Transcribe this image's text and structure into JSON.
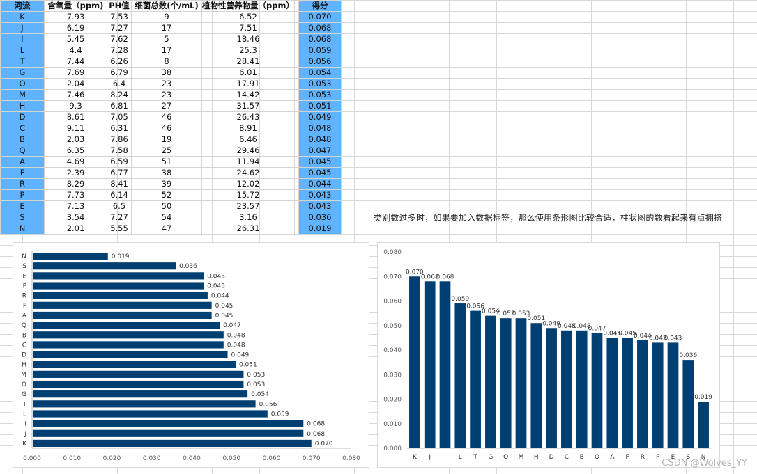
{
  "table": {
    "headers": {
      "river": "河流",
      "oxygen": "含氧量（ppm)",
      "ph": "PH值",
      "bacteria": "细菌总数(个/mL)",
      "nutrient": "植物性营养物量（ppm）",
      "score": "得分"
    },
    "rows": [
      {
        "river": "K",
        "oxygen": "7.93",
        "ph": "7.53",
        "bacteria": "9",
        "nutrient": "6.52",
        "score": "0.070"
      },
      {
        "river": "J",
        "oxygen": "6.19",
        "ph": "7.27",
        "bacteria": "17",
        "nutrient": "7.51",
        "score": "0.068"
      },
      {
        "river": "I",
        "oxygen": "5.45",
        "ph": "7.62",
        "bacteria": "5",
        "nutrient": "18.46",
        "score": "0.068"
      },
      {
        "river": "L",
        "oxygen": "4.4",
        "ph": "7.28",
        "bacteria": "17",
        "nutrient": "25.3",
        "score": "0.059"
      },
      {
        "river": "T",
        "oxygen": "7.44",
        "ph": "6.26",
        "bacteria": "8",
        "nutrient": "28.41",
        "score": "0.056"
      },
      {
        "river": "G",
        "oxygen": "7.69",
        "ph": "6.79",
        "bacteria": "38",
        "nutrient": "6.01",
        "score": "0.054"
      },
      {
        "river": "O",
        "oxygen": "2.04",
        "ph": "6.4",
        "bacteria": "23",
        "nutrient": "17.91",
        "score": "0.053"
      },
      {
        "river": "M",
        "oxygen": "7.46",
        "ph": "8.24",
        "bacteria": "23",
        "nutrient": "14.42",
        "score": "0.053"
      },
      {
        "river": "H",
        "oxygen": "9.3",
        "ph": "6.81",
        "bacteria": "27",
        "nutrient": "31.57",
        "score": "0.051"
      },
      {
        "river": "D",
        "oxygen": "8.61",
        "ph": "7.05",
        "bacteria": "46",
        "nutrient": "26.43",
        "score": "0.049"
      },
      {
        "river": "C",
        "oxygen": "9.11",
        "ph": "6.31",
        "bacteria": "46",
        "nutrient": "8.91",
        "score": "0.048"
      },
      {
        "river": "B",
        "oxygen": "2.03",
        "ph": "7.86",
        "bacteria": "19",
        "nutrient": "6.46",
        "score": "0.048"
      },
      {
        "river": "Q",
        "oxygen": "6.35",
        "ph": "7.58",
        "bacteria": "25",
        "nutrient": "29.46",
        "score": "0.047"
      },
      {
        "river": "A",
        "oxygen": "4.69",
        "ph": "6.59",
        "bacteria": "51",
        "nutrient": "11.94",
        "score": "0.045"
      },
      {
        "river": "F",
        "oxygen": "2.39",
        "ph": "6.77",
        "bacteria": "38",
        "nutrient": "24.62",
        "score": "0.045"
      },
      {
        "river": "R",
        "oxygen": "8.29",
        "ph": "8.41",
        "bacteria": "39",
        "nutrient": "12.02",
        "score": "0.044"
      },
      {
        "river": "P",
        "oxygen": "7.73",
        "ph": "6.14",
        "bacteria": "52",
        "nutrient": "15.72",
        "score": "0.043"
      },
      {
        "river": "E",
        "oxygen": "7.13",
        "ph": "6.5",
        "bacteria": "50",
        "nutrient": "23.57",
        "score": "0.043"
      },
      {
        "river": "S",
        "oxygen": "3.54",
        "ph": "7.27",
        "bacteria": "54",
        "nutrient": "3.16",
        "score": "0.036"
      },
      {
        "river": "N",
        "oxygen": "2.01",
        "ph": "5.55",
        "bacteria": "47",
        "nutrient": "26.31",
        "score": "0.019"
      }
    ]
  },
  "note": "类别数过多时，如果要加入数据标签，那么使用条形图比较合适，柱状图的数看起来有点拥挤",
  "watermark": "CSDN @Wolves_YY",
  "colors": {
    "bar": "#003f72",
    "header_highlight": "#5fb3ff"
  },
  "chart_data": [
    {
      "type": "bar",
      "orientation": "horizontal",
      "categories": [
        "K",
        "J",
        "I",
        "L",
        "T",
        "G",
        "O",
        "M",
        "H",
        "D",
        "C",
        "B",
        "Q",
        "A",
        "F",
        "R",
        "P",
        "E",
        "S",
        "N"
      ],
      "values": [
        0.07,
        0.068,
        0.068,
        0.059,
        0.056,
        0.054,
        0.053,
        0.053,
        0.051,
        0.049,
        0.048,
        0.048,
        0.047,
        0.045,
        0.045,
        0.044,
        0.043,
        0.043,
        0.036,
        0.019
      ],
      "value_labels": [
        "0.070",
        "0.068",
        "0.068",
        "0.059",
        "0.056",
        "0.054",
        "0.053",
        "0.053",
        "0.051",
        "0.049",
        "0.048",
        "0.048",
        "0.047",
        "0.045",
        "0.045",
        "0.044",
        "0.043",
        "0.043",
        "0.036",
        "0.019"
      ],
      "axis_ticks": [
        "0.000",
        "0.010",
        "0.020",
        "0.030",
        "0.040",
        "0.050",
        "0.060",
        "0.070",
        "0.080"
      ],
      "xlim": [
        0,
        0.08
      ],
      "category_order": "bottom-to-top",
      "grid": false,
      "legend": "none"
    },
    {
      "type": "bar",
      "orientation": "vertical",
      "categories": [
        "K",
        "J",
        "I",
        "L",
        "T",
        "G",
        "O",
        "M",
        "H",
        "D",
        "C",
        "B",
        "Q",
        "A",
        "F",
        "R",
        "P",
        "E",
        "S",
        "N"
      ],
      "values": [
        0.07,
        0.068,
        0.068,
        0.059,
        0.056,
        0.054,
        0.053,
        0.053,
        0.051,
        0.049,
        0.048,
        0.048,
        0.047,
        0.045,
        0.045,
        0.044,
        0.043,
        0.043,
        0.036,
        0.019
      ],
      "value_labels": [
        "0.070",
        "0.068",
        "0.068",
        "0.059",
        "0.056",
        "0.054",
        "0.053",
        "0.053",
        "0.051",
        "0.049",
        "0.048",
        "0.048",
        "0.047",
        "0.045",
        "0.045",
        "0.044",
        "0.043",
        "0.043",
        "0.036",
        "0.019"
      ],
      "axis_ticks": [
        "0.000",
        "0.010",
        "0.020",
        "0.030",
        "0.040",
        "0.050",
        "0.060",
        "0.070",
        "0.080"
      ],
      "ylim": [
        0,
        0.08
      ],
      "grid": false,
      "legend": "none"
    }
  ]
}
